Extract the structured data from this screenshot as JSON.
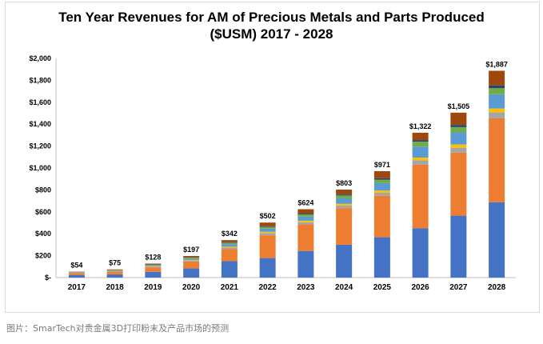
{
  "chart_data": {
    "type": "bar",
    "stacked": true,
    "title": "Ten Year Revenues for AM of Precious Metals and Parts Produced",
    "subtitle": "($USM) 2017 - 2028",
    "xlabel": "",
    "ylabel": "",
    "ylim": [
      0,
      2000
    ],
    "yticks": [
      "$-",
      "$200",
      "$400",
      "$600",
      "$800",
      "$1,000",
      "$1,200",
      "$1,400",
      "$1,600",
      "$1,800",
      "$2,000"
    ],
    "categories": [
      "2017",
      "2018",
      "2019",
      "2020",
      "2021",
      "2022",
      "2023",
      "2024",
      "2025",
      "2026",
      "2027",
      "2028"
    ],
    "total_labels": [
      "$54",
      "$75",
      "$128",
      "$197",
      "$342",
      "$502",
      "$624",
      "$803",
      "$971",
      "$1,322",
      "$1,505",
      "$1,887"
    ],
    "totals": [
      54,
      75,
      128,
      197,
      342,
      502,
      624,
      803,
      971,
      1322,
      1505,
      1887
    ],
    "series": [
      {
        "color": "#4472c4",
        "values": [
          24,
          30,
          52,
          85,
          150,
          178,
          243,
          300,
          368,
          450,
          565,
          688
        ]
      },
      {
        "color": "#ed7d31",
        "values": [
          16,
          24,
          42,
          62,
          112,
          208,
          242,
          332,
          378,
          580,
          575,
          765
        ]
      },
      {
        "color": "#a5a5a5",
        "values": [
          3,
          4,
          6,
          9,
          12,
          20,
          20,
          25,
          28,
          40,
          45,
          55
        ]
      },
      {
        "color": "#ffc000",
        "values": [
          2,
          3,
          4,
          5,
          8,
          12,
          14,
          16,
          20,
          25,
          30,
          35
        ]
      },
      {
        "color": "#5b9bd5",
        "values": [
          3,
          5,
          9,
          13,
          24,
          28,
          38,
          50,
          68,
          100,
          110,
          130
        ]
      },
      {
        "color": "#70ad47",
        "values": [
          2,
          3,
          5,
          8,
          12,
          16,
          20,
          26,
          32,
          45,
          48,
          55
        ]
      },
      {
        "color": "#264478",
        "values": [
          1,
          1,
          2,
          3,
          4,
          6,
          7,
          9,
          12,
          15,
          20,
          25
        ]
      },
      {
        "color": "#9e480e",
        "values": [
          3,
          5,
          8,
          12,
          20,
          34,
          40,
          45,
          65,
          67,
          112,
          134
        ]
      }
    ],
    "grid": false,
    "legend": "none"
  },
  "caption": "图片：SmarTech对贵金属3D打印粉末及产品市场的预测"
}
